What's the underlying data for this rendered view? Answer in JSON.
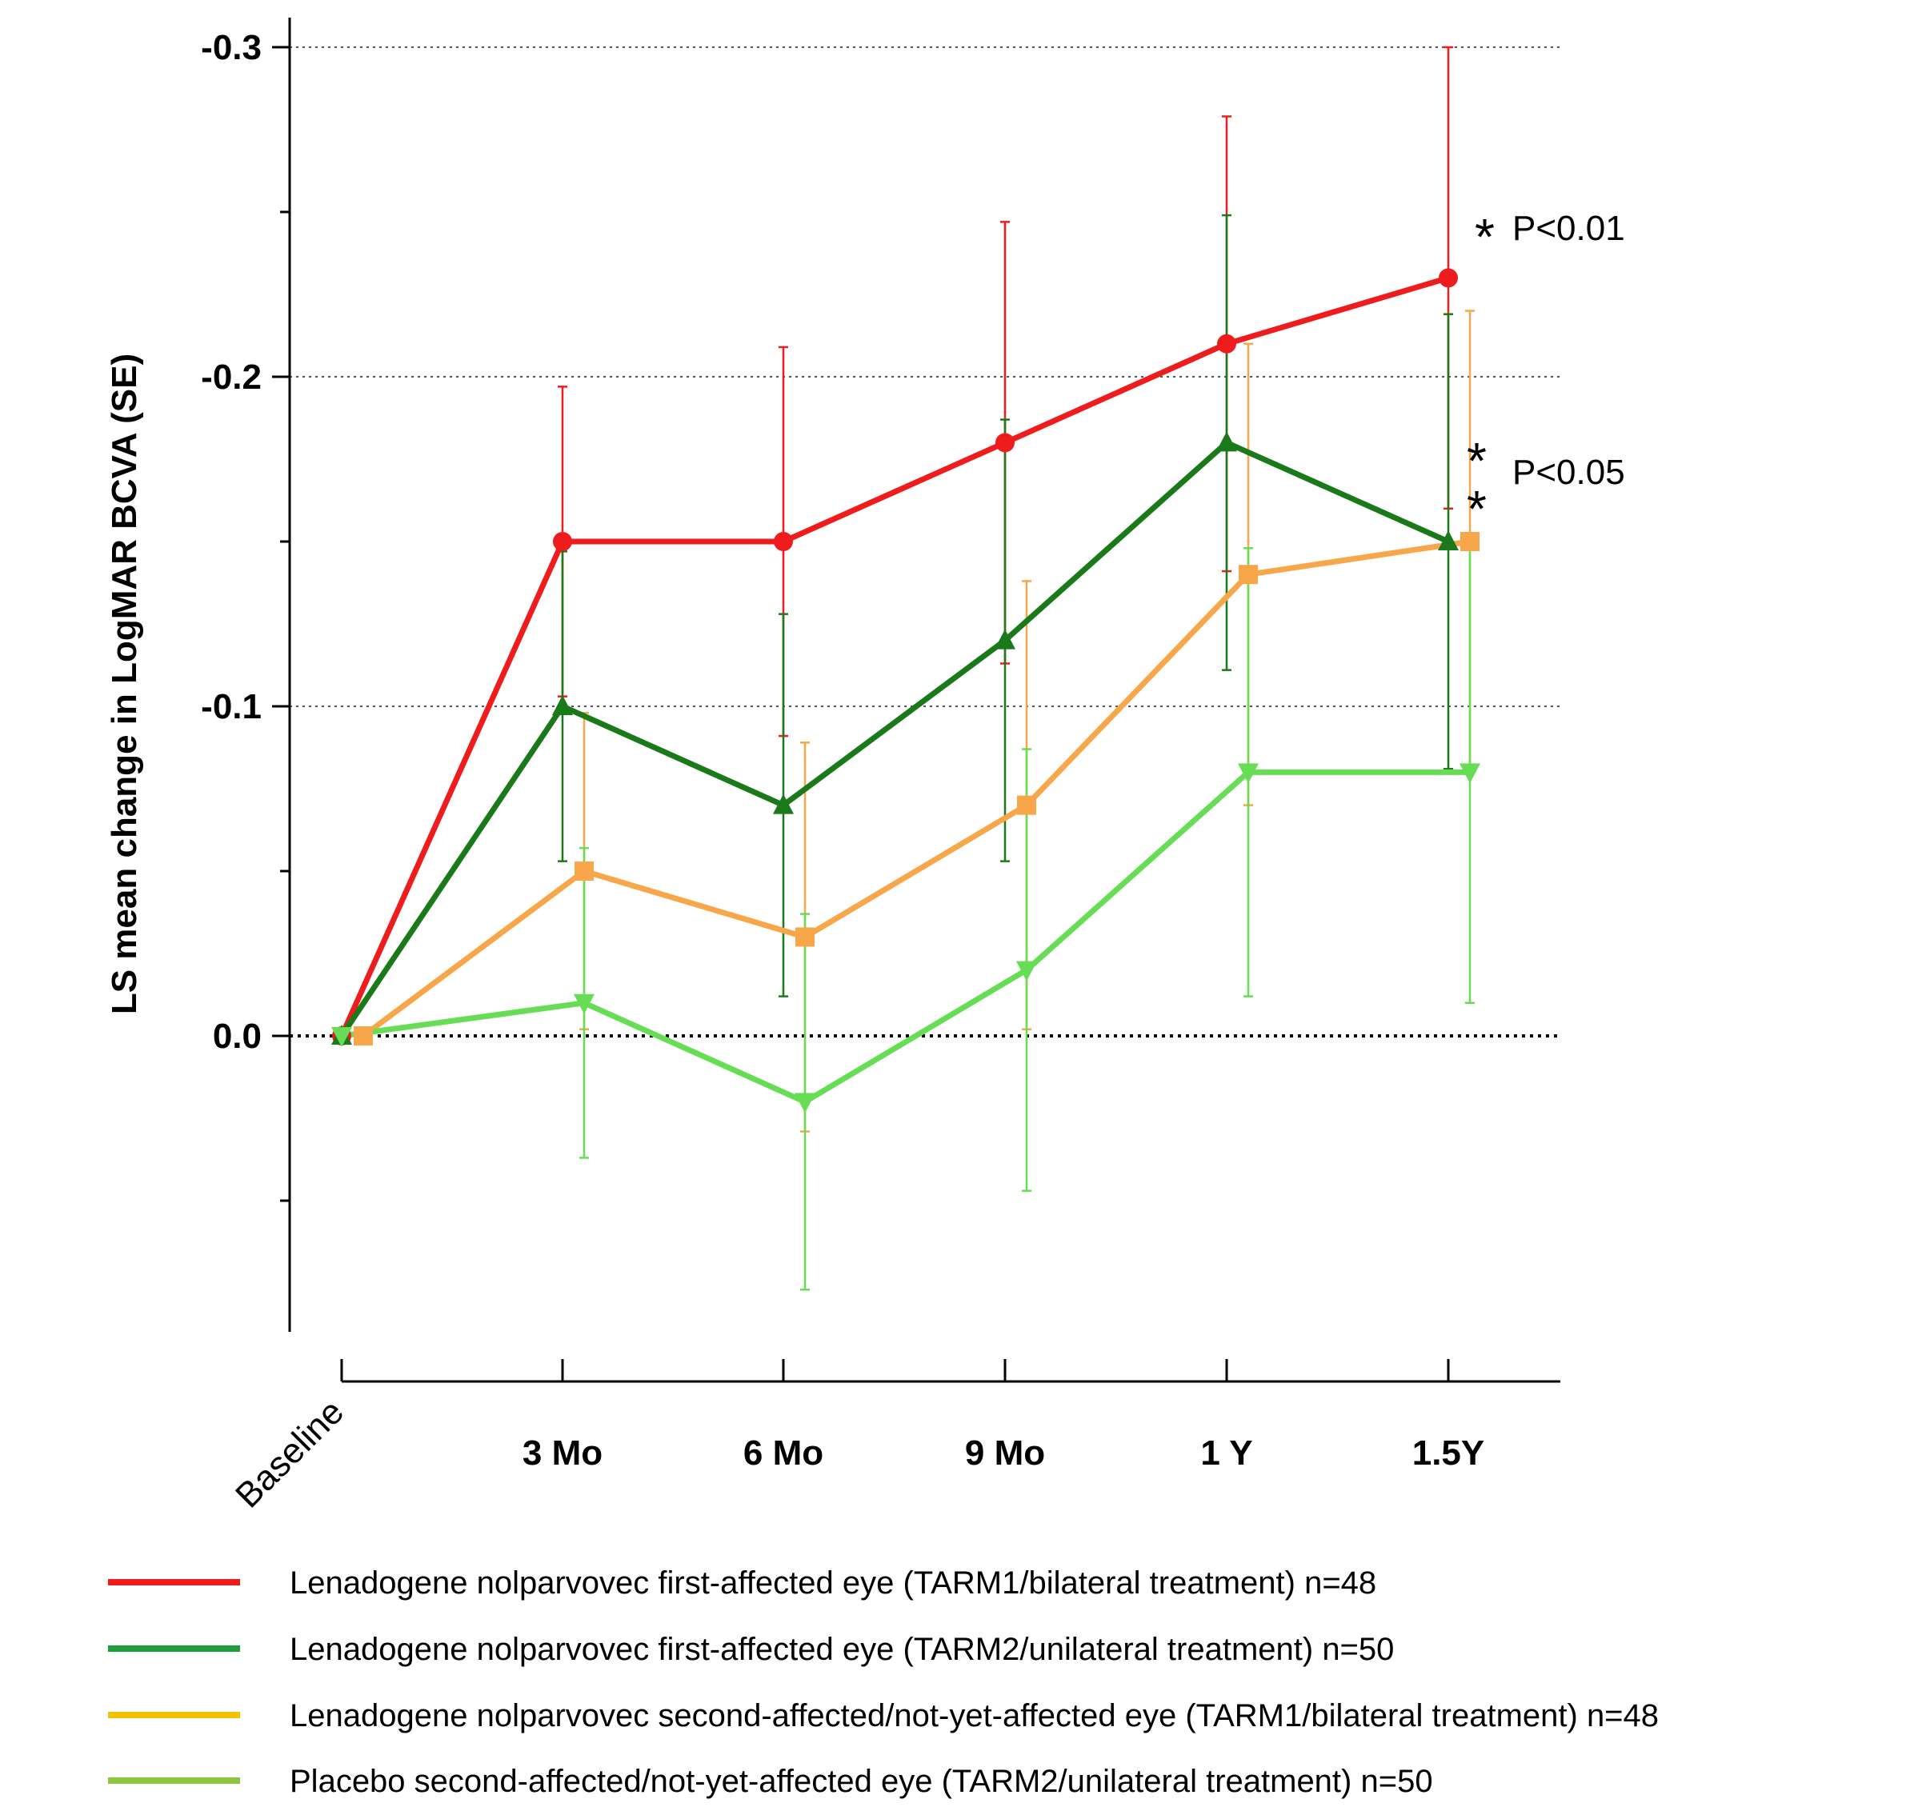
{
  "chart_data": {
    "type": "line",
    "ylabel": "LS mean change in LogMAR BCVA (SE)",
    "xlabel": "",
    "categories": [
      "Baseline",
      "3 Mo",
      "6 Mo",
      "9 Mo",
      "1 Y",
      "1.5Y"
    ],
    "ylim": [
      0.09,
      -0.31
    ],
    "y_reversed": true,
    "yticks": [
      0.0,
      -0.1,
      -0.2,
      -0.3
    ],
    "ytick_labels": [
      "0.0",
      "-0.1",
      "-0.2",
      "-0.3"
    ],
    "minor_yticks": [
      0.05,
      -0.05,
      -0.15,
      -0.25
    ],
    "gridlines": [
      -0.1,
      -0.2,
      -0.3
    ],
    "zero_line": 0.0,
    "series": [
      {
        "name": "Lenadogene nolparvovec first-affected eye (TARM1/bilateral treatment) n=48",
        "color": "#ee1c1c",
        "legend_color": "#ee1c1c",
        "marker": "circle",
        "values": [
          0.0,
          -0.15,
          -0.15,
          -0.18,
          -0.21,
          -0.23
        ],
        "errors": [
          0.0,
          0.047,
          0.059,
          0.067,
          0.069,
          0.07
        ]
      },
      {
        "name": "Lenadogene nolparvovec first-affected eye (TARM2/unilateral treatment) n=50",
        "color": "#1a7a1a",
        "legend_color": "#1e9e3a",
        "marker": "triangle-up",
        "values": [
          0.0,
          -0.1,
          -0.07,
          -0.12,
          -0.18,
          -0.15
        ],
        "errors": [
          0.0,
          0.047,
          0.058,
          0.067,
          0.069,
          0.069
        ]
      },
      {
        "name": "Lenadogene nolparvovec second-affected/not-yet-affected eye (TARM1/bilateral treatment) n=48",
        "color": "#f7a649",
        "legend_color": "#f2c300",
        "marker": "square",
        "values": [
          0.0,
          -0.05,
          -0.03,
          -0.07,
          -0.14,
          -0.15
        ],
        "errors": [
          0.0,
          0.048,
          0.059,
          0.068,
          0.07,
          0.07
        ]
      },
      {
        "name": "Placebo second-affected/not-yet-affected eye (TARM2/unilateral treatment) n=50",
        "color": "#66dd55",
        "legend_color": "#8cc63f",
        "marker": "triangle-down",
        "values": [
          0.0,
          -0.01,
          0.02,
          -0.02,
          -0.08,
          -0.08
        ],
        "errors": [
          0.0,
          0.047,
          0.057,
          0.067,
          0.068,
          0.07
        ]
      }
    ],
    "annotations": [
      {
        "text": "P<0.01",
        "stars": "*",
        "at_series": 0
      },
      {
        "text": "P<0.05",
        "stars": "*",
        "at_series": 1
      }
    ]
  }
}
